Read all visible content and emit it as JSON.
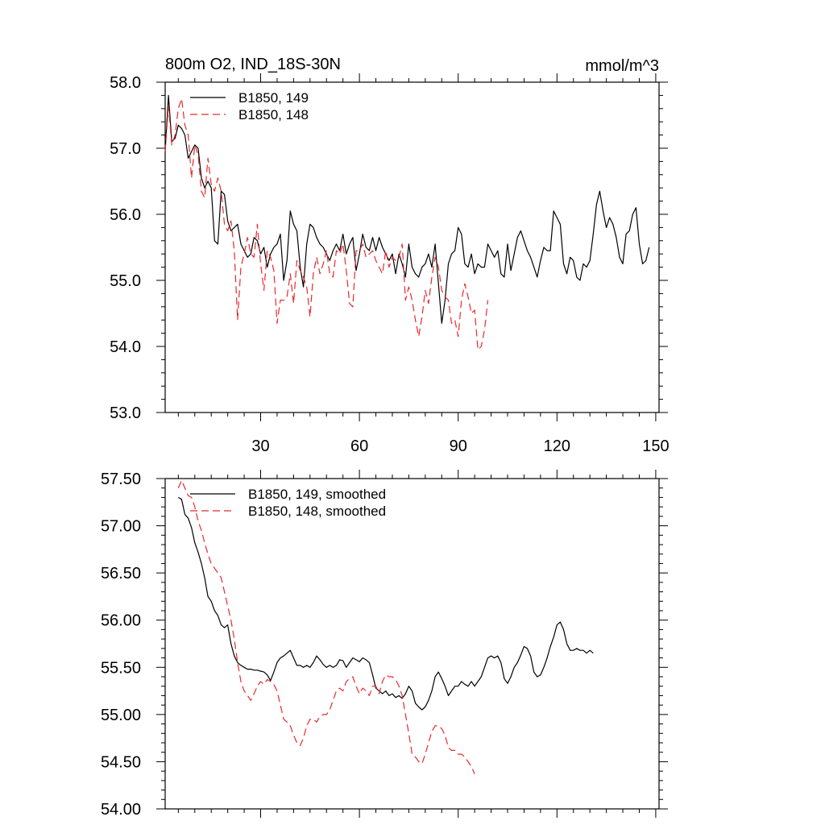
{
  "chart_data": [
    {
      "type": "line",
      "title": "800m O2, IND_18S-30N",
      "units": "mmol/m^3",
      "xlim": [
        1,
        151
      ],
      "ylim": [
        53.0,
        58.0
      ],
      "x_tick_values": [
        30,
        60,
        90,
        120,
        150
      ],
      "x_tick_labels": [
        "30",
        "60",
        "90",
        "120",
        "150"
      ],
      "y_tick_values": [
        53,
        54,
        55,
        56,
        57,
        58
      ],
      "y_tick_labels": [
        "53.0",
        "54.0",
        "55.0",
        "56.0",
        "57.0",
        "58.0"
      ],
      "legend_position": "top-left",
      "series": [
        {
          "name": "B1850, 149",
          "color": "#000000",
          "dash": "solid",
          "x_start": 1,
          "values": [
            56.95,
            57.8,
            57.1,
            57.15,
            57.35,
            57.3,
            57.2,
            56.85,
            56.95,
            57.05,
            57.0,
            56.55,
            56.4,
            56.5,
            56.4,
            55.6,
            55.55,
            56.35,
            56.3,
            55.9,
            55.75,
            55.8,
            55.85,
            55.55,
            55.45,
            55.35,
            55.4,
            55.65,
            55.6,
            55.4,
            55.5,
            55.2,
            55.4,
            55.5,
            55.55,
            55.7,
            55.0,
            55.3,
            56.05,
            55.85,
            55.75,
            55.2,
            54.9,
            55.55,
            55.85,
            55.8,
            55.65,
            55.55,
            55.5,
            55.4,
            55.3,
            55.45,
            55.55,
            55.45,
            55.7,
            55.4,
            55.55,
            55.65,
            55.15,
            55.4,
            55.7,
            55.5,
            55.45,
            55.65,
            55.45,
            55.65,
            55.5,
            55.4,
            55.3,
            55.4,
            55.1,
            55.4,
            55.25,
            55.05,
            55.55,
            55.2,
            55.1,
            55.05,
            55.2,
            55.25,
            55.4,
            55.2,
            55.55,
            54.95,
            54.35,
            54.7,
            55.25,
            55.4,
            55.45,
            55.8,
            55.7,
            55.25,
            55.2,
            55.4,
            55.1,
            55.25,
            55.2,
            55.2,
            55.55,
            55.45,
            55.35,
            55.45,
            55.1,
            55.05,
            55.55,
            55.15,
            55.4,
            55.65,
            55.75,
            55.6,
            55.45,
            55.35,
            55.2,
            55.05,
            55.3,
            55.5,
            55.45,
            55.45,
            56.05,
            55.95,
            55.85,
            55.25,
            55.1,
            55.35,
            55.3,
            55.05,
            55.0,
            55.25,
            55.2,
            55.3,
            55.7,
            56.15,
            56.35,
            56.05,
            55.8,
            55.95,
            55.85,
            55.65,
            55.35,
            55.25,
            55.7,
            55.75,
            56.0,
            56.1,
            55.55,
            55.25,
            55.3,
            55.5
          ]
        },
        {
          "name": "B1850, 148",
          "color": "#e8292e",
          "dash": "dashed",
          "x_start": 1,
          "values": [
            56.95,
            57.65,
            57.05,
            57.2,
            57.6,
            57.75,
            57.35,
            57.2,
            56.55,
            57.05,
            56.9,
            56.35,
            56.25,
            56.85,
            56.45,
            56.35,
            56.55,
            56.35,
            55.85,
            55.75,
            55.9,
            55.45,
            54.4,
            55.2,
            55.4,
            55.65,
            55.4,
            55.35,
            55.85,
            55.25,
            54.85,
            55.45,
            55.35,
            55.15,
            54.35,
            54.7,
            54.7,
            54.75,
            55.1,
            54.65,
            55.3,
            55.15,
            55.05,
            54.9,
            54.45,
            55.1,
            55.35,
            55.1,
            55.25,
            55.45,
            55.1,
            55.05,
            55.45,
            55.4,
            55.55,
            55.15,
            54.65,
            54.6,
            55.45,
            55.45,
            55.55,
            55.35,
            55.4,
            55.45,
            55.3,
            55.2,
            55.1,
            55.45,
            55.2,
            55.35,
            55.3,
            55.35,
            55.55,
            54.7,
            54.9,
            54.7,
            54.4,
            54.15,
            54.45,
            54.85,
            54.65,
            55.05,
            55.35,
            55.2,
            54.85,
            54.75,
            54.7,
            54.35,
            54.4,
            54.15,
            54.7,
            54.95,
            54.75,
            54.5,
            54.55,
            53.95,
            54.0,
            54.25,
            54.7
          ]
        }
      ]
    },
    {
      "type": "line",
      "title": "",
      "xlim": [
        1,
        151
      ],
      "ylim": [
        54.0,
        57.5
      ],
      "x_tick_values": [
        30,
        60,
        90,
        120,
        150
      ],
      "x_tick_labels": [
        "",
        "",
        "",
        "",
        ""
      ],
      "y_tick_values": [
        54.0,
        54.5,
        55.0,
        55.5,
        56.0,
        56.5,
        57.0,
        57.5
      ],
      "y_tick_labels": [
        "54.00",
        "54.50",
        "55.00",
        "55.50",
        "56.00",
        "56.50",
        "57.00",
        "57.50"
      ],
      "legend_position": "top-left",
      "series": [
        {
          "name": "B1850, 149, smoothed",
          "color": "#000000",
          "dash": "solid",
          "x_start": 5,
          "values": [
            57.3,
            57.28,
            57.12,
            57.08,
            56.98,
            56.82,
            56.72,
            56.6,
            56.45,
            56.25,
            56.2,
            56.1,
            56.05,
            55.95,
            55.92,
            55.95,
            55.75,
            55.62,
            55.55,
            55.52,
            55.5,
            55.48,
            55.48,
            55.47,
            55.47,
            55.46,
            55.45,
            55.42,
            55.36,
            55.45,
            55.55,
            55.6,
            55.62,
            55.65,
            55.68,
            55.6,
            55.52,
            55.52,
            55.5,
            55.52,
            55.5,
            55.55,
            55.62,
            55.58,
            55.53,
            55.5,
            55.52,
            55.5,
            55.52,
            55.58,
            55.57,
            55.5,
            55.55,
            55.6,
            55.58,
            55.56,
            55.6,
            55.58,
            55.55,
            55.42,
            55.28,
            55.25,
            55.22,
            55.25,
            55.2,
            55.22,
            55.18,
            55.2,
            55.17,
            55.22,
            55.3,
            55.25,
            55.12,
            55.08,
            55.05,
            55.08,
            55.15,
            55.25,
            55.4,
            55.45,
            55.38,
            55.3,
            55.2,
            55.25,
            55.3,
            55.3,
            55.35,
            55.32,
            55.3,
            55.35,
            55.3,
            55.35,
            55.4,
            55.5,
            55.6,
            55.62,
            55.6,
            55.62,
            55.55,
            55.38,
            55.33,
            55.4,
            55.5,
            55.55,
            55.63,
            55.72,
            55.7,
            55.62,
            55.45,
            55.4,
            55.42,
            55.5,
            55.6,
            55.72,
            55.82,
            55.95,
            55.98,
            55.9,
            55.75,
            55.68,
            55.68,
            55.7,
            55.68,
            55.68,
            55.65,
            55.68,
            55.65
          ]
        },
        {
          "name": "B1850, 148, smoothed",
          "color": "#e8292e",
          "dash": "dashed",
          "x_start": 5,
          "values": [
            57.4,
            57.48,
            57.4,
            57.32,
            57.3,
            57.2,
            57.05,
            56.95,
            56.82,
            56.7,
            56.6,
            56.55,
            56.5,
            56.45,
            56.3,
            56.15,
            56.0,
            55.8,
            55.55,
            55.35,
            55.25,
            55.2,
            55.15,
            55.22,
            55.3,
            55.35,
            55.32,
            55.37,
            55.35,
            55.32,
            55.25,
            55.1,
            54.95,
            54.92,
            54.88,
            54.78,
            54.7,
            54.67,
            54.75,
            54.88,
            54.95,
            54.95,
            54.92,
            54.98,
            55.0,
            55.0,
            55.05,
            55.15,
            55.25,
            55.28,
            55.25,
            55.35,
            55.38,
            55.4,
            55.3,
            55.22,
            55.28,
            55.25,
            55.2,
            55.3,
            55.3,
            55.22,
            55.35,
            55.42,
            55.4,
            55.4,
            55.37,
            55.3,
            55.2,
            55.0,
            54.8,
            54.58,
            54.55,
            54.5,
            54.48,
            54.58,
            54.7,
            54.82,
            54.88,
            54.88,
            54.85,
            54.78,
            54.65,
            54.62,
            54.62,
            54.58,
            54.58,
            54.55,
            54.5,
            54.45,
            54.37
          ]
        }
      ]
    }
  ]
}
